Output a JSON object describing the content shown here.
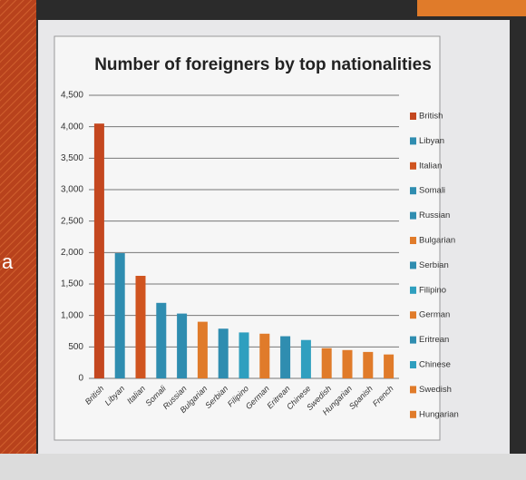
{
  "chart_data": {
    "type": "bar",
    "title": "Number of foreigners by top nationalities",
    "categories": [
      "British",
      "Libyan",
      "Italian",
      "Somali",
      "Russian",
      "Bulgarian",
      "Serbian",
      "Filipino",
      "German",
      "Eritrean",
      "Chinese",
      "Swedish",
      "Hungarian",
      "Spanish",
      "French"
    ],
    "values": [
      4050,
      1990,
      1630,
      1200,
      1030,
      900,
      790,
      730,
      710,
      670,
      610,
      480,
      450,
      420,
      380
    ],
    "colors": [
      "#c4471f",
      "#2f8db0",
      "#d0541f",
      "#2f8db0",
      "#2f8db0",
      "#e07b2a",
      "#2f8db0",
      "#2f9fbf",
      "#e07b2a",
      "#2f8db0",
      "#2f9fbf",
      "#e07b2a",
      "#e07b2a",
      "#e07b2a",
      "#e07b2a"
    ],
    "legend": [
      "British",
      "Libyan",
      "Italian",
      "Somali",
      "Russian",
      "Bulgarian",
      "Serbian",
      "Filipino",
      "German",
      "Eritrean",
      "Chinese",
      "Swedish",
      "Hungarian"
    ],
    "ylim": [
      0,
      4500
    ],
    "yticks": [
      0,
      500,
      {
        "value": 1000,
        "label": "1,000"
      },
      {
        "value": 1500,
        "label": "1,500"
      },
      {
        "value": 2000,
        "label": "2,000"
      },
      {
        "value": 2500,
        "label": "2,500"
      },
      {
        "value": 3000,
        "label": "3,000"
      },
      {
        "value": 3500,
        "label": "3,500"
      },
      {
        "value": 4000,
        "label": "4,000"
      },
      {
        "value": 4500,
        "label": "4,500"
      }
    ],
    "grid": true
  },
  "slide_fragment": "a"
}
